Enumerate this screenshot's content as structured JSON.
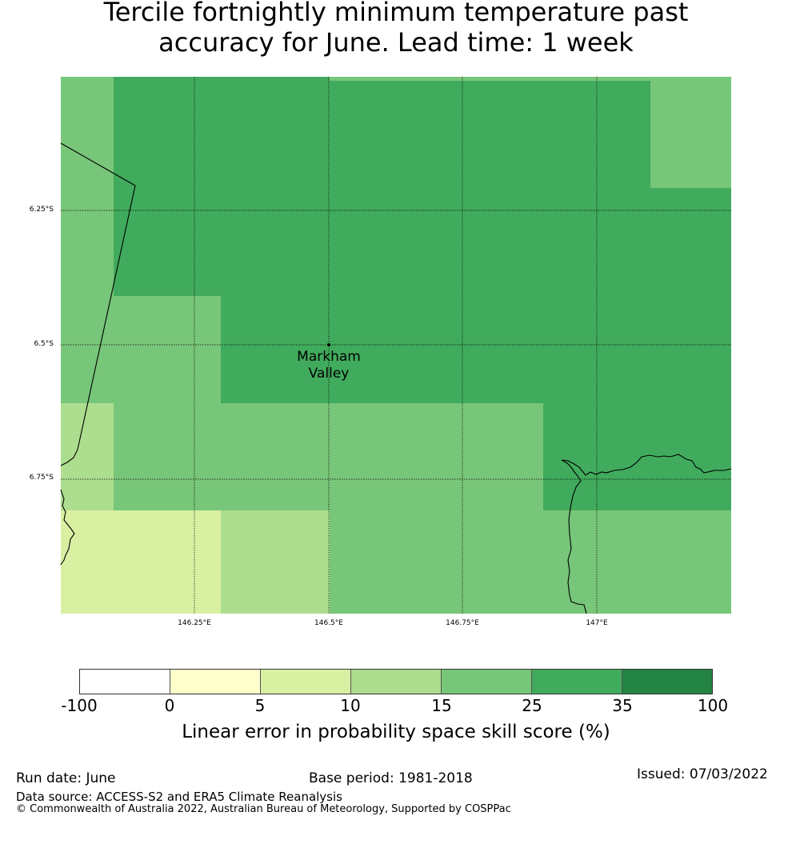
{
  "title_line1": "Tercile fortnightly minimum temperature past",
  "title_line2": "accuracy for June. Lead time: 1 week",
  "map": {
    "lat_labels": [
      "6.25°S",
      "6.5°S",
      "6.75°S"
    ],
    "lon_labels": [
      "146.25°E",
      "146.5°E",
      "146.75°E",
      "147°E"
    ],
    "location": "Markham Valley",
    "location_line1": "Markham",
    "location_line2": "Valley"
  },
  "colorbar": {
    "ticks": [
      "-100",
      "0",
      "5",
      "10",
      "15",
      "25",
      "35",
      "100"
    ],
    "colors": [
      "#ffffff",
      "#ffffcc",
      "#d9f0a3",
      "#addd8e",
      "#78c679",
      "#41ab5d",
      "#238443"
    ],
    "label": "Linear error in probability space skill score (%)"
  },
  "footer": {
    "run_date": "Run date: June",
    "base_period": "Base period: 1981-2018",
    "issued": "Issued: 07/03/2022",
    "data_source": "Data source: ACCESS-S2 and ERA5 Climate Reanalysis",
    "copyright": "© Commonwealth of Australia 2022, Australian Bureau of Meteorology, Supported by COSPPac"
  }
}
